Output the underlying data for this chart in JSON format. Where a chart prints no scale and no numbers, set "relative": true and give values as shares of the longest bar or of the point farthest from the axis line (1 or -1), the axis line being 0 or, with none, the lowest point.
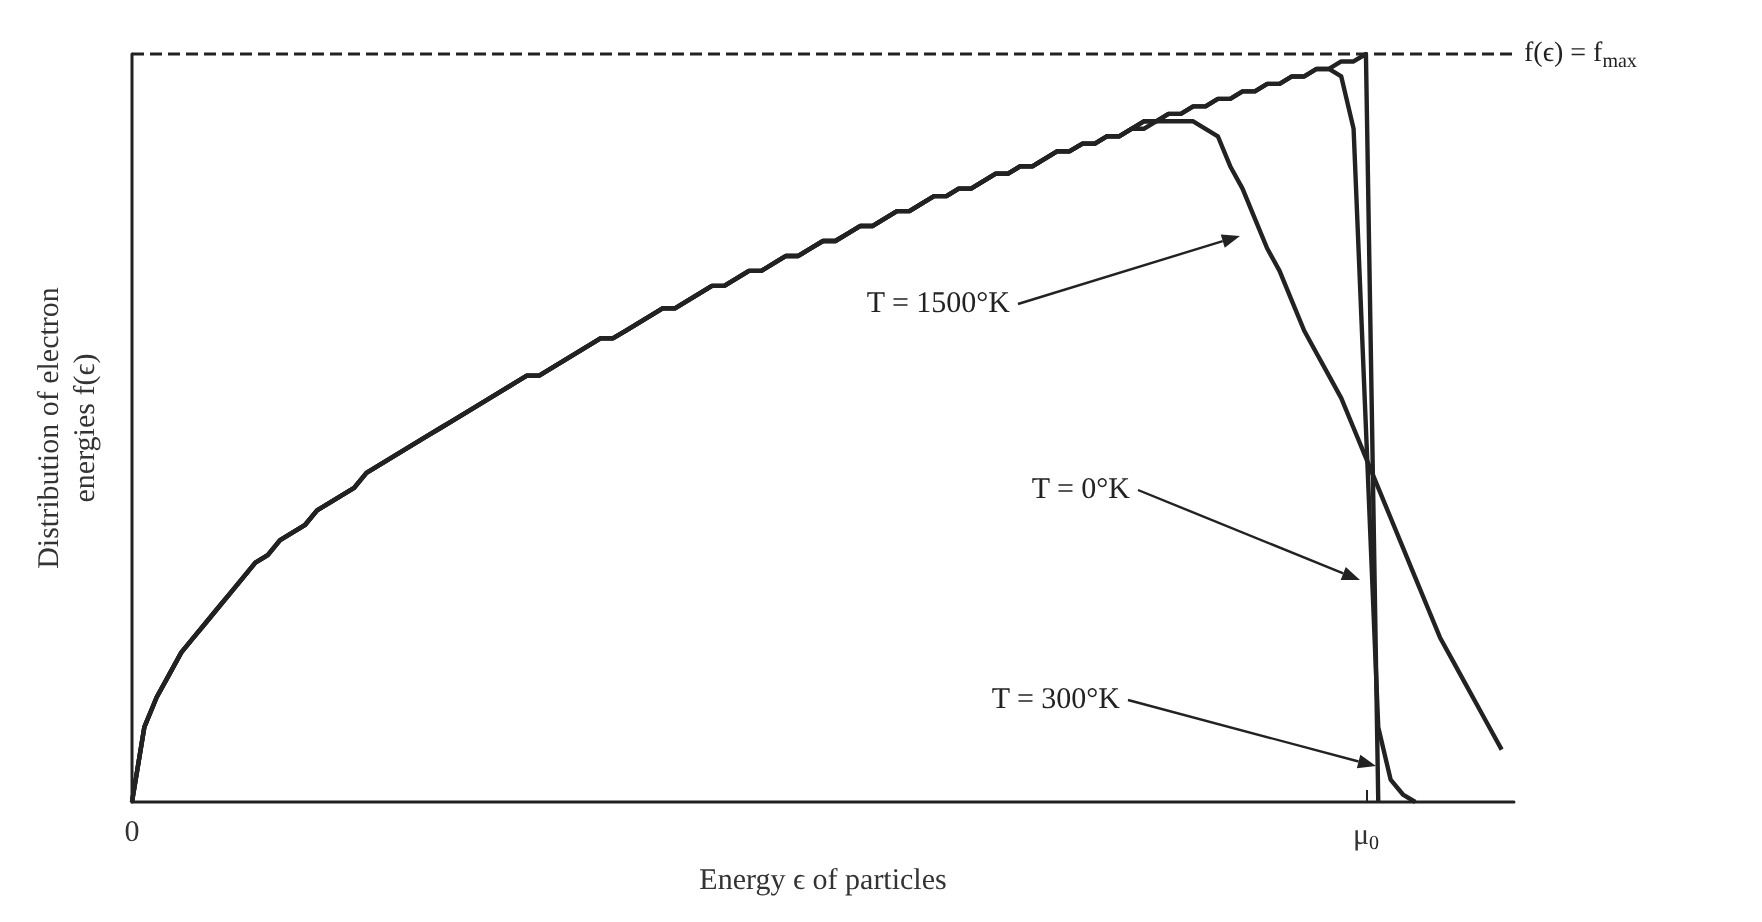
{
  "chart_data": {
    "type": "line",
    "xlabel": "Energy ϵ of particles",
    "ylabel": "Distribution of electron\nenergies f(ϵ)",
    "relative": true,
    "marker": "none",
    "line_style": "solid",
    "categories": [
      "0",
      null,
      null,
      null,
      null,
      null,
      null,
      null,
      null,
      null,
      null,
      null,
      null,
      null,
      null,
      null,
      null,
      null,
      null,
      null,
      null,
      null,
      null,
      null,
      null,
      null,
      null,
      null,
      null,
      null,
      null,
      null,
      null,
      null,
      null,
      null,
      null,
      null,
      null,
      null,
      null,
      null,
      null,
      null,
      null,
      null,
      null,
      null,
      null,
      null,
      null,
      null,
      null,
      null,
      null,
      null,
      null,
      null,
      null,
      null,
      null,
      null,
      null,
      null,
      null,
      null,
      null,
      null,
      null,
      null,
      null,
      null,
      null,
      null,
      null,
      null,
      null,
      null,
      null,
      null,
      null,
      null,
      null,
      null,
      null,
      null,
      null,
      null,
      null,
      null,
      null,
      null,
      null,
      null,
      null,
      null,
      null,
      null,
      null,
      null,
      "μ$_{0}$",
      null,
      null,
      null,
      null,
      null,
      null,
      null,
      null,
      null,
      null,
      null,
      null
    ],
    "series": [
      {
        "color": "#222222",
        "values": [
          0,
          0.1,
          0.14,
          0.17,
          0.2,
          0.22,
          0.24,
          0.26,
          0.28,
          0.3,
          0.32,
          0.33,
          0.35,
          0.36,
          0.37,
          0.39,
          0.4,
          0.41,
          0.42,
          0.44,
          0.45,
          0.46,
          0.47,
          0.48,
          0.49,
          0.5,
          0.51,
          0.52,
          0.53,
          0.54,
          0.55,
          0.56,
          0.57,
          0.57,
          0.58,
          0.59,
          0.6,
          0.61,
          0.62,
          0.62,
          0.63,
          0.64,
          0.65,
          0.66,
          0.66,
          0.67,
          0.68,
          0.69,
          0.69,
          0.7,
          0.71,
          0.71,
          0.72,
          0.73,
          0.73,
          0.74,
          0.75,
          0.75,
          0.76,
          0.77,
          0.77,
          0.78,
          0.79,
          0.79,
          0.8,
          0.81,
          0.81,
          0.82,
          0.82,
          0.83,
          0.84,
          0.84,
          0.85,
          0.85,
          0.86,
          0.87,
          0.87,
          0.88,
          0.88,
          0.89,
          0.89,
          0.9,
          0.91,
          0.91,
          0.92,
          0.92,
          0.93,
          0.93,
          0.94,
          0.94,
          0.95,
          0.95,
          0.96,
          0.96,
          0.97,
          0.97,
          0.98,
          0.98,
          0.99,
          0.99,
          1,
          0,
          null,
          null,
          null,
          null,
          null,
          null,
          null,
          null,
          null,
          null,
          null
        ]
      },
      {
        "color": "#222222",
        "values": [
          0,
          0.1,
          0.14,
          0.17,
          0.2,
          0.22,
          0.24,
          0.26,
          0.28,
          0.3,
          0.32,
          0.33,
          0.35,
          0.36,
          0.37,
          0.39,
          0.4,
          0.41,
          0.42,
          0.44,
          0.45,
          0.46,
          0.47,
          0.48,
          0.49,
          0.5,
          0.51,
          0.52,
          0.53,
          0.54,
          0.55,
          0.56,
          0.57,
          0.57,
          0.58,
          0.59,
          0.6,
          0.61,
          0.62,
          0.62,
          0.63,
          0.64,
          0.65,
          0.66,
          0.66,
          0.67,
          0.68,
          0.69,
          0.69,
          0.7,
          0.71,
          0.71,
          0.72,
          0.73,
          0.73,
          0.74,
          0.75,
          0.75,
          0.76,
          0.77,
          0.77,
          0.78,
          0.79,
          0.79,
          0.8,
          0.81,
          0.81,
          0.82,
          0.82,
          0.83,
          0.84,
          0.84,
          0.85,
          0.85,
          0.86,
          0.87,
          0.87,
          0.88,
          0.88,
          0.89,
          0.89,
          0.9,
          0.9,
          0.91,
          0.91,
          0.91,
          0.91,
          0.9,
          0.89,
          0.85,
          0.82,
          0.78,
          0.74,
          0.71,
          0.67,
          0.63,
          0.6,
          0.57,
          0.54,
          0.5,
          0.46,
          0.42,
          0.38,
          0.34,
          0.3,
          0.26,
          0.22,
          0.19,
          0.16,
          0.13,
          0.1,
          0.07,
          null
        ]
      },
      {
        "color": "#222222",
        "values": [
          0,
          0.1,
          0.14,
          0.17,
          0.2,
          0.22,
          0.24,
          0.26,
          0.28,
          0.3,
          0.32,
          0.33,
          0.35,
          0.36,
          0.37,
          0.39,
          0.4,
          0.41,
          0.42,
          0.44,
          0.45,
          0.46,
          0.47,
          0.48,
          0.49,
          0.5,
          0.51,
          0.52,
          0.53,
          0.54,
          0.55,
          0.56,
          0.57,
          0.57,
          0.58,
          0.59,
          0.6,
          0.61,
          0.62,
          0.62,
          0.63,
          0.64,
          0.65,
          0.66,
          0.66,
          0.67,
          0.68,
          0.69,
          0.69,
          0.7,
          0.71,
          0.71,
          0.72,
          0.73,
          0.73,
          0.74,
          0.75,
          0.75,
          0.76,
          0.77,
          0.77,
          0.78,
          0.79,
          0.79,
          0.8,
          0.81,
          0.81,
          0.82,
          0.82,
          0.83,
          0.84,
          0.84,
          0.85,
          0.85,
          0.86,
          0.87,
          0.87,
          0.88,
          0.88,
          0.89,
          0.89,
          0.9,
          0.91,
          0.91,
          0.92,
          0.92,
          0.93,
          0.93,
          0.94,
          0.94,
          0.95,
          0.95,
          0.96,
          0.96,
          0.97,
          0.97,
          0.98,
          0.98,
          0.97,
          0.9,
          0.5,
          0.1,
          0.03,
          0.01,
          0,
          null,
          null,
          null,
          null,
          null,
          null,
          null,
          null
        ]
      }
    ],
    "ref_lines": [
      {
        "axis": "y",
        "value": 1,
        "label": "f(ϵ) = f$_{max}$",
        "line_style": "dashed",
        "color": "#222222"
      }
    ],
    "annotations": [
      "T = 1500°K",
      "T = 0°K",
      "T = 300°K"
    ]
  }
}
